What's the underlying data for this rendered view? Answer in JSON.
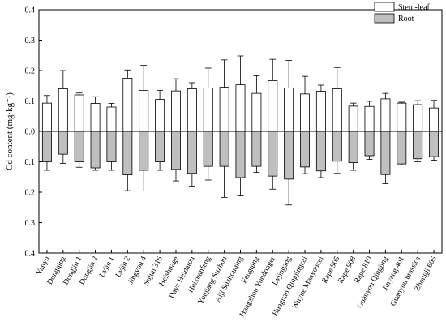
{
  "chart_data": {
    "type": "bar",
    "ylabel": "Cd content (mg·kg⁻¹)",
    "ylim": [
      -0.4,
      0.4
    ],
    "yticks": [
      0.4,
      0.3,
      0.2,
      0.1,
      0.0,
      -0.1,
      -0.2,
      -0.3,
      -0.4
    ],
    "ytick_labels": [
      "0.4",
      "0.3",
      "0.2",
      "0.1",
      "0.0",
      "0.1",
      "0.2",
      "0.3",
      "0.4"
    ],
    "legend_position": "top-right",
    "categories": [
      "Yanyu",
      "Dongqing",
      "Dongjin 1",
      "Dongjin 2",
      "Lvjin 1",
      "Lvjin 2",
      "Jingyou 4",
      "Sujun 316",
      "Heishuage",
      "Daye Heidatou",
      "Heixuanfeng",
      "Youjiang Suzhou",
      "Aiji Suzhouqing",
      "Fengqing",
      "Hangzhou Youdonger",
      "Lvjingang",
      "Huaguan Qingjingcai",
      "Wuyue Manyoucai",
      "Rape 905",
      "Rape 908",
      "Rape 810",
      "Guanyou Qingjing",
      "Jinyang 401",
      "Guanyou brassica",
      "Zhongji 605"
    ],
    "series": [
      {
        "name": "Stem-leaf",
        "color": "#ffffff",
        "values": [
          0.093,
          0.14,
          0.12,
          0.092,
          0.08,
          0.175,
          0.135,
          0.105,
          0.133,
          0.14,
          0.143,
          0.145,
          0.153,
          0.125,
          0.167,
          0.143,
          0.123,
          0.132,
          0.14,
          0.083,
          0.082,
          0.107,
          0.093,
          0.088,
          0.077
        ],
        "errors": [
          0.025,
          0.06,
          0.006,
          0.022,
          0.012,
          0.027,
          0.082,
          0.03,
          0.04,
          0.02,
          0.065,
          0.09,
          0.095,
          0.058,
          0.07,
          0.09,
          0.058,
          0.02,
          0.07,
          0.01,
          0.017,
          0.018,
          0.003,
          0.013,
          0.025
        ]
      },
      {
        "name": "Root",
        "color": "#bfbfbf",
        "values": [
          -0.1,
          -0.075,
          -0.1,
          -0.12,
          -0.1,
          -0.143,
          -0.128,
          -0.1,
          -0.125,
          -0.138,
          -0.115,
          -0.115,
          -0.152,
          -0.115,
          -0.147,
          -0.157,
          -0.117,
          -0.13,
          -0.098,
          -0.103,
          -0.08,
          -0.142,
          -0.107,
          -0.09,
          -0.083
        ],
        "errors": [
          0.028,
          0.03,
          0.018,
          0.008,
          0.028,
          0.052,
          0.068,
          0.028,
          0.038,
          0.042,
          0.045,
          0.102,
          0.06,
          0.02,
          0.043,
          0.085,
          0.022,
          0.022,
          0.04,
          0.025,
          0.012,
          0.03,
          0.004,
          0.01,
          0.012
        ]
      }
    ]
  }
}
